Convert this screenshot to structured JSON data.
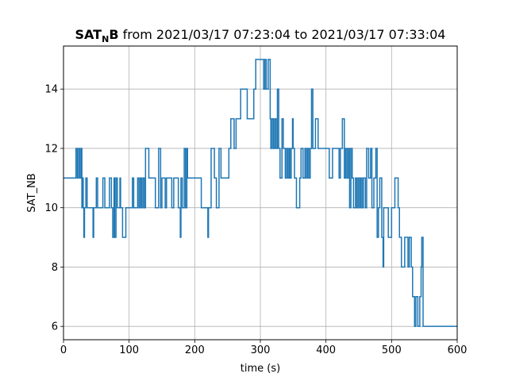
{
  "chart_data": {
    "type": "line",
    "title": {
      "var_main": "SAT",
      "var_sub": "N",
      "var_end": "B",
      "rest": " from 2021/03/17 07:23:04 to 2021/03/17 07:33:04"
    },
    "xlabel": "time (s)",
    "ylabel": "SAT_NB",
    "xlim": [
      0,
      600
    ],
    "ylim": [
      5.55,
      15.45
    ],
    "xticks": [
      0,
      100,
      200,
      300,
      400,
      500,
      600
    ],
    "yticks": [
      6,
      8,
      10,
      12,
      14
    ],
    "grid": true,
    "step": "post",
    "series": [
      {
        "color": "#1f77b4",
        "x": [
          0,
          19,
          21,
          23,
          25,
          27,
          28,
          29,
          30,
          31,
          32,
          34,
          36,
          38,
          45,
          46,
          47,
          50,
          52,
          55,
          60,
          63,
          65,
          70,
          73,
          75,
          77,
          78,
          80,
          82,
          84,
          86,
          87,
          90,
          95,
          105,
          107,
          110,
          113,
          115,
          117,
          119,
          121,
          123,
          125,
          128,
          130,
          135,
          140,
          145,
          148,
          150,
          155,
          157,
          159,
          165,
          168,
          175,
          178,
          179,
          181,
          184,
          186,
          188,
          189,
          190,
          192,
          194,
          196,
          200,
          210,
          215,
          220,
          221,
          222,
          225,
          230,
          233,
          237,
          240,
          245,
          247,
          250,
          252,
          255,
          260,
          263,
          265,
          267,
          268,
          270,
          273,
          276,
          280,
          285,
          290,
          293,
          295,
          297,
          300,
          302,
          305,
          307,
          309,
          312,
          314,
          315,
          316,
          318,
          320,
          322,
          324,
          326,
          328,
          330,
          333,
          335,
          338,
          340,
          342,
          344,
          345,
          347,
          349,
          350,
          352,
          355,
          360,
          362,
          365,
          368,
          370,
          372,
          374,
          376,
          378,
          380,
          382,
          384,
          386,
          388,
          392,
          395,
          398,
          400,
          405,
          410,
          412,
          415,
          420,
          422,
          425,
          428,
          430,
          432,
          434,
          436,
          438,
          440,
          442,
          445,
          447,
          449,
          451,
          453,
          455,
          457,
          460,
          462,
          465,
          468,
          470,
          473,
          476,
          478,
          480,
          482,
          485,
          487,
          488,
          495,
          500,
          505,
          510,
          512,
          515,
          520,
          525,
          527,
          530,
          532,
          535,
          537,
          540,
          543,
          545,
          546,
          548,
          550,
          551,
          552,
          555,
          556,
          557,
          558,
          560,
          562,
          565,
          568,
          570,
          572,
          600
        ],
        "y": [
          11,
          12,
          11,
          12,
          11,
          12,
          10,
          11,
          10,
          9,
          10,
          11,
          10,
          10,
          9,
          10,
          10,
          11,
          10,
          10,
          11,
          10,
          10,
          11,
          10,
          9,
          11,
          9,
          11,
          10,
          10,
          11,
          10,
          9,
          10,
          11,
          10,
          10,
          11,
          10,
          11,
          10,
          11,
          10,
          12,
          12,
          11,
          11,
          10,
          12,
          10,
          11,
          10,
          11,
          11,
          10,
          11,
          10,
          9,
          11,
          10,
          12,
          10,
          12,
          11,
          11,
          11,
          11,
          11,
          11,
          10,
          10,
          9,
          10,
          10,
          12,
          11,
          10,
          12,
          11,
          11,
          11,
          11,
          12,
          13,
          12,
          13,
          13,
          13,
          13,
          14,
          14,
          14,
          13,
          13,
          14,
          15,
          15,
          15,
          15,
          15,
          14,
          15,
          14,
          15,
          15,
          13,
          12,
          13,
          12,
          13,
          12,
          14,
          12,
          11,
          13,
          12,
          11,
          12,
          11,
          12,
          11,
          12,
          13,
          12,
          11,
          10,
          11,
          12,
          11,
          12,
          11,
          12,
          11,
          12,
          14,
          12,
          12,
          13,
          13,
          12,
          12,
          12,
          12,
          12,
          11,
          12,
          12,
          12,
          11,
          12,
          13,
          11,
          12,
          11,
          12,
          10,
          12,
          11,
          10,
          11,
          10,
          11,
          10,
          11,
          10,
          11,
          10,
          12,
          11,
          12,
          10,
          11,
          12,
          9,
          10,
          11,
          9,
          8,
          10,
          9,
          10,
          11,
          10,
          9,
          8,
          9,
          8,
          9,
          8,
          7,
          6,
          7,
          6,
          7,
          8,
          9,
          6,
          6,
          6,
          6,
          6,
          6,
          6,
          6,
          6,
          6,
          6,
          6,
          6,
          6,
          6
        ]
      }
    ]
  }
}
